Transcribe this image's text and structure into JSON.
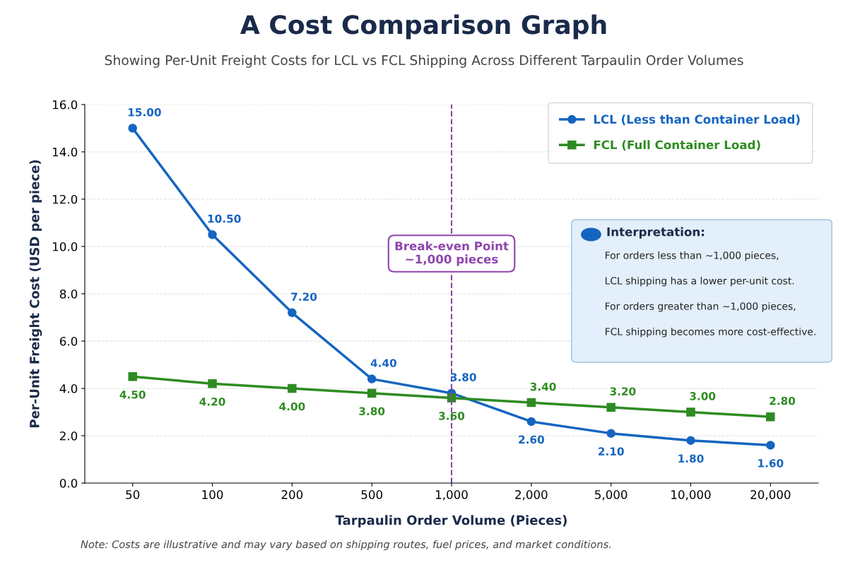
{
  "chart_data": {
    "type": "line",
    "title": "A Cost Comparison Graph",
    "subtitle": "Showing Per-Unit Freight Costs for LCL vs FCL Shipping Across Different Tarpaulin Order Volumes",
    "xlabel": "Tarpaulin Order Volume (Pieces)",
    "ylabel": "Per-Unit Freight Cost (USD per piece)",
    "categories": [
      "50",
      "100",
      "200",
      "500",
      "1,000",
      "2,000",
      "5,000",
      "10,000",
      "20,000"
    ],
    "series": [
      {
        "name": "LCL (Less than Container Load)",
        "color": "#1565c0",
        "marker": "circle",
        "values": [
          15.0,
          10.5,
          7.2,
          4.4,
          3.8,
          2.6,
          2.1,
          1.8,
          1.6
        ],
        "value_labels": [
          "15.00",
          "10.50",
          "7.20",
          "4.40",
          "3.80",
          "2.60",
          "2.10",
          "1.80",
          "1.60"
        ]
      },
      {
        "name": "FCL (Full Container Load)",
        "color": "#2e8b22",
        "marker": "square",
        "values": [
          4.5,
          4.2,
          4.0,
          3.8,
          3.6,
          3.4,
          3.2,
          3.0,
          2.8
        ],
        "value_labels": [
          "4.50",
          "4.20",
          "4.00",
          "3.80",
          "3.60",
          "3.40",
          "3.20",
          "3.00",
          "2.80"
        ]
      }
    ],
    "ylim": [
      0,
      16
    ],
    "yticks": [
      {
        "value": 0,
        "label": "0.0"
      },
      {
        "value": 2,
        "label": "2.0"
      },
      {
        "value": 4,
        "label": "4.0"
      },
      {
        "value": 6,
        "label": "6.0"
      },
      {
        "value": 8,
        "label": "8.0"
      },
      {
        "value": 10,
        "label": "10.0"
      },
      {
        "value": 12,
        "label": "12.0"
      },
      {
        "value": 14,
        "label": "14.0"
      },
      {
        "value": 16,
        "label": "16.0"
      }
    ],
    "grid": "y",
    "legend": "top right",
    "line_style": "solid",
    "ref_lines": [
      {
        "axis": "x",
        "value": "1,000",
        "label": "Break-even Point\n~1,000 pieces",
        "color": "#8e44ad",
        "line_style": "dashed"
      }
    ],
    "annotations": [
      "Interpretation:",
      "For orders less than ~1,000 pieces,",
      "LCL shipping has a lower per-unit cost.",
      "For orders greater than ~1,000 pieces,",
      "FCL shipping becomes more cost-effective.",
      "Note: Costs are illustrative and may vary based on shipping routes, fuel prices, and market conditions."
    ]
  }
}
